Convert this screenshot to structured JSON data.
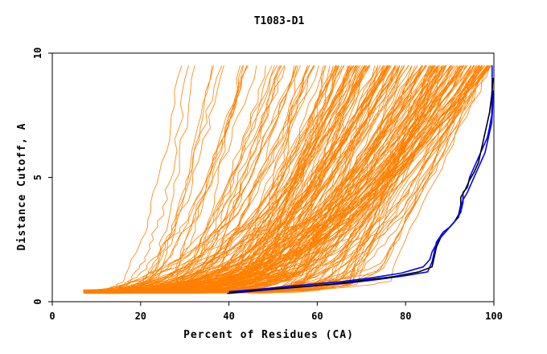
{
  "chart_data": {
    "type": "line",
    "title": "T1083-D1",
    "xlabel": "Percent of Residues (CA)",
    "ylabel": "Distance Cutoff, A",
    "xlim": [
      0,
      100
    ],
    "ylim": [
      0,
      10
    ],
    "x_ticks": [
      "0",
      "20",
      "40",
      "60",
      "80",
      "100"
    ],
    "y_ticks": [
      "0",
      "5",
      "10"
    ],
    "x_tick_values": [
      0,
      20,
      40,
      60,
      80,
      100
    ],
    "y_tick_values": [
      0,
      5,
      10
    ],
    "grid": false,
    "colors": {
      "background_models": "#ff8000",
      "highlight_blue": "#0000ff",
      "highlight_black": "#000000",
      "axis": "#000000"
    },
    "background_series_count": 220,
    "series": [
      {
        "values": [
          [
            39.6,
            0.33
          ],
          [
            44.0,
            0.4
          ],
          [
            50.0,
            0.5
          ],
          [
            58.0,
            0.62
          ],
          [
            67.0,
            0.75
          ],
          [
            74.0,
            0.9
          ],
          [
            80.0,
            1.05
          ],
          [
            85.0,
            1.2
          ],
          [
            86.0,
            1.6
          ],
          [
            86.5,
            2.0
          ],
          [
            87.0,
            2.4
          ],
          [
            88.5,
            2.8
          ],
          [
            90.0,
            3.0
          ],
          [
            91.5,
            3.3
          ],
          [
            92.5,
            3.6
          ],
          [
            93.0,
            4.0
          ],
          [
            93.0,
            4.4
          ],
          [
            94.0,
            4.6
          ],
          [
            94.5,
            5.0
          ],
          [
            95.5,
            5.4
          ],
          [
            96.5,
            5.8
          ],
          [
            97.5,
            6.2
          ],
          [
            98.5,
            6.6
          ],
          [
            99.0,
            7.0
          ],
          [
            99.5,
            7.5
          ],
          [
            99.6,
            8.5
          ],
          [
            99.6,
            9.5
          ]
        ]
      },
      {
        "values": [
          [
            40.0,
            0.35
          ],
          [
            46.0,
            0.45
          ],
          [
            55.0,
            0.58
          ],
          [
            63.0,
            0.7
          ],
          [
            70.0,
            0.85
          ],
          [
            77.0,
            1.0
          ],
          [
            83.0,
            1.2
          ],
          [
            86.0,
            1.4
          ],
          [
            86.5,
            1.8
          ],
          [
            87.0,
            2.2
          ],
          [
            88.0,
            2.6
          ],
          [
            89.5,
            2.9
          ],
          [
            91.0,
            3.2
          ],
          [
            92.0,
            3.5
          ],
          [
            92.5,
            3.9
          ],
          [
            92.5,
            4.2
          ],
          [
            93.5,
            4.5
          ],
          [
            94.5,
            4.9
          ],
          [
            95.5,
            5.2
          ],
          [
            96.5,
            5.6
          ],
          [
            97.0,
            6.0
          ],
          [
            97.5,
            6.4
          ],
          [
            98.0,
            6.8
          ],
          [
            98.5,
            7.2
          ],
          [
            99.0,
            7.6
          ],
          [
            99.5,
            8.3
          ],
          [
            99.8,
            9.0
          ]
        ]
      },
      {
        "values": [
          [
            40.0,
            0.4
          ],
          [
            48.0,
            0.52
          ],
          [
            56.0,
            0.66
          ],
          [
            65.0,
            0.8
          ],
          [
            72.0,
            0.95
          ],
          [
            79.0,
            1.15
          ],
          [
            84.0,
            1.4
          ],
          [
            85.5,
            1.7
          ],
          [
            86.0,
            2.0
          ],
          [
            87.5,
            2.5
          ],
          [
            89.0,
            2.8
          ],
          [
            90.5,
            3.1
          ],
          [
            92.0,
            3.4
          ],
          [
            92.5,
            3.8
          ],
          [
            93.0,
            4.1
          ],
          [
            94.0,
            4.4
          ],
          [
            95.0,
            4.8
          ],
          [
            96.0,
            5.2
          ],
          [
            97.0,
            5.6
          ],
          [
            98.0,
            6.0
          ],
          [
            98.5,
            6.4
          ],
          [
            99.0,
            6.8
          ],
          [
            99.5,
            7.2
          ],
          [
            99.7,
            7.8
          ],
          [
            99.8,
            8.5
          ]
        ]
      }
    ]
  }
}
